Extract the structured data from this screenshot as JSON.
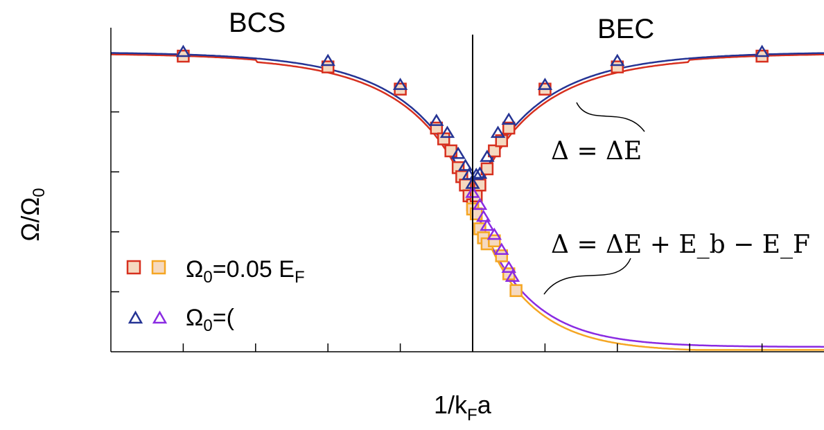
{
  "chart_data": {
    "type": "scatter",
    "xlabel": "1/k",
    "xlabel_sub": "F",
    "xlabel_tail": "a",
    "ylabel": "Ω/Ω",
    "ylabel_sub": "0",
    "regions": {
      "left": "BCS",
      "right": "BEC"
    },
    "xlim": [
      -5,
      5
    ],
    "ylim": [
      0,
      5
    ],
    "grid": false,
    "legend_placement": "bottom-left",
    "annotations": [
      {
        "text": "Δ = ΔE",
        "target": "upper-branch"
      },
      {
        "text": "Δ = ΔE + E_b − E_F",
        "target": "lower-branch"
      }
    ],
    "legend": [
      {
        "prefix": "Ω",
        "sub": "0",
        "text": "=0.05 E",
        "tail_sub": "F",
        "markers": [
          "square-red",
          "square-orange"
        ]
      },
      {
        "prefix": "Ω",
        "sub": "0",
        "text": "=(",
        "tail_sub": "",
        "markers": [
          "triangle-blue",
          "triangle-purple"
        ]
      }
    ],
    "colors": {
      "red": "#d7301f",
      "orange": "#f5a623",
      "blue": "#253494",
      "purple": "#8a2be2",
      "square_fill": "#f5d9c0",
      "vertical_line": "#000000"
    },
    "series": [
      {
        "marker": "square",
        "color": "red",
        "points": [
          [
            -4,
            4.93
          ],
          [
            -2,
            4.75
          ],
          [
            -1,
            4.38
          ],
          [
            -0.5,
            3.73
          ],
          [
            -0.4,
            3.55
          ],
          [
            -0.3,
            3.35
          ],
          [
            -0.2,
            3.07
          ],
          [
            -0.15,
            2.92
          ],
          [
            -0.1,
            2.78
          ],
          [
            -0.05,
            2.6
          ],
          [
            0,
            2.45
          ],
          [
            0.05,
            2.6
          ],
          [
            0.1,
            2.78
          ],
          [
            0.2,
            3.05
          ],
          [
            0.3,
            3.35
          ],
          [
            0.4,
            3.52
          ],
          [
            0.5,
            3.73
          ],
          [
            1,
            4.38
          ],
          [
            2,
            4.75
          ],
          [
            4,
            4.93
          ]
        ]
      },
      {
        "marker": "square",
        "color": "orange",
        "points": [
          [
            0,
            2.38
          ],
          [
            0.05,
            2.3
          ],
          [
            0.1,
            2.05
          ],
          [
            0.15,
            1.9
          ],
          [
            0.2,
            1.8
          ],
          [
            0.3,
            1.85
          ],
          [
            0.4,
            1.6
          ],
          [
            0.5,
            1.3
          ],
          [
            0.6,
            1.02
          ]
        ]
      },
      {
        "marker": "triangle",
        "color": "blue",
        "points": [
          [
            -4,
            5.0
          ],
          [
            -2,
            4.85
          ],
          [
            -1,
            4.45
          ],
          [
            -0.5,
            3.85
          ],
          [
            -0.35,
            3.65
          ],
          [
            -0.2,
            3.3
          ],
          [
            -0.1,
            3.1
          ],
          [
            -0.05,
            2.95
          ],
          [
            0,
            2.8
          ],
          [
            0.05,
            2.95
          ],
          [
            0.1,
            2.97
          ],
          [
            0.2,
            3.25
          ],
          [
            0.35,
            3.65
          ],
          [
            0.5,
            3.87
          ],
          [
            1,
            4.45
          ],
          [
            2,
            4.85
          ],
          [
            4,
            5.0
          ]
        ]
      },
      {
        "marker": "triangle",
        "color": "purple",
        "points": [
          [
            0,
            2.65
          ],
          [
            0.1,
            2.45
          ],
          [
            0.15,
            2.25
          ],
          [
            0.2,
            2.1
          ],
          [
            0.3,
            1.95
          ],
          [
            0.4,
            1.7
          ],
          [
            0.5,
            1.4
          ],
          [
            0.55,
            1.25
          ]
        ]
      }
    ],
    "curves": [
      {
        "color": "red",
        "branch": "upper",
        "offset": -0.06
      },
      {
        "color": "blue",
        "branch": "upper",
        "offset": 0.0
      },
      {
        "color": "orange",
        "branch": "lower",
        "offset": -0.08
      },
      {
        "color": "purple",
        "branch": "lower",
        "offset": 0.0
      }
    ]
  }
}
